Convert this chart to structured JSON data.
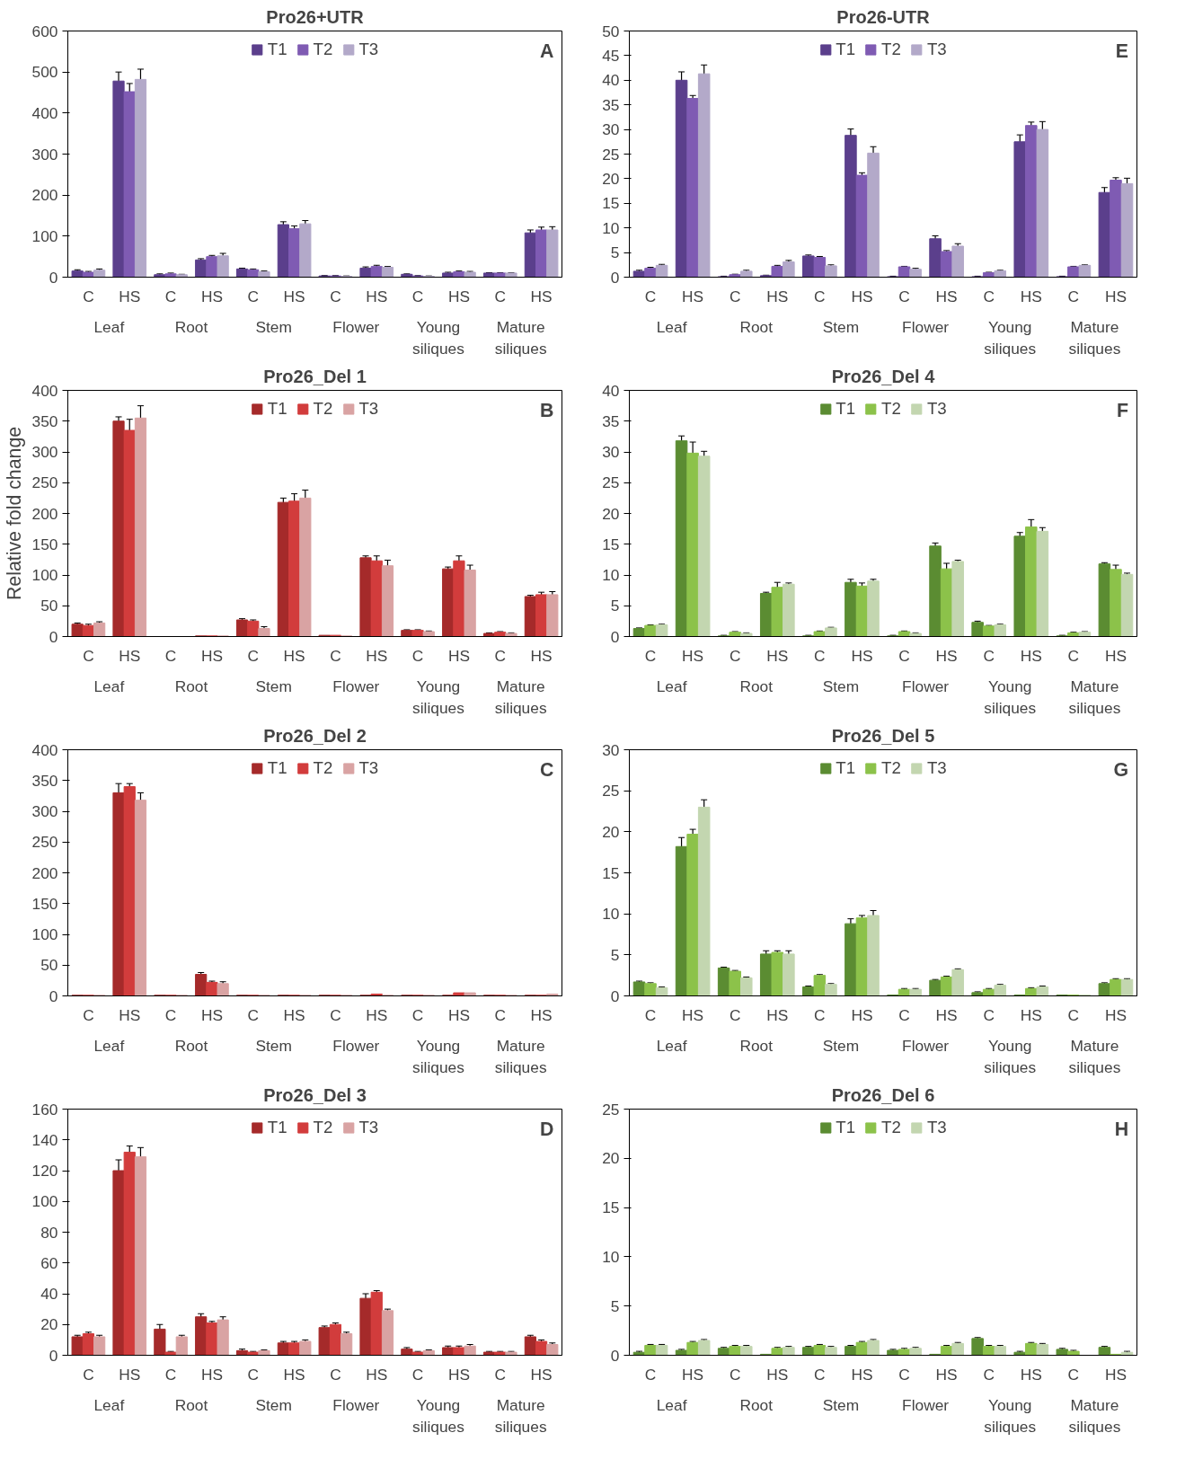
{
  "chart_data": [
    {
      "type": "bar",
      "title": "Pro26+UTR",
      "categories": [
        "C",
        "HS",
        "C",
        "HS",
        "C",
        "HS",
        "C",
        "HS",
        "C",
        "HS",
        "C",
        "HS"
      ],
      "annotations": [
        "A",
        "Leaf",
        "Root",
        "Stem",
        "Flower",
        "Young\nsiliques",
        "Mature\nsiliques"
      ],
      "ylim": [
        0,
        600
      ],
      "yticks": [
        0,
        100,
        200,
        300,
        400,
        500,
        600
      ],
      "legend": "top",
      "grid": false,
      "series": [
        {
          "name": "T1",
          "color": "#5b3f8c",
          "values": [
            15,
            478,
            6,
            42,
            20,
            128,
            3,
            22,
            7,
            10,
            10,
            108
          ],
          "errors": [
            3,
            22,
            2,
            3,
            2,
            7,
            1,
            3,
            1,
            2,
            1,
            7
          ]
        },
        {
          "name": "T2",
          "color": "#7f5bb3",
          "values": [
            12,
            452,
            8,
            50,
            18,
            118,
            3,
            26,
            3,
            13,
            10,
            115
          ],
          "errors": [
            2,
            20,
            2,
            3,
            2,
            7,
            1,
            3,
            1,
            2,
            1,
            7
          ]
        },
        {
          "name": "T3",
          "color": "#b3a9c9",
          "values": [
            17,
            482,
            6,
            52,
            13,
            130,
            2,
            24,
            2,
            12,
            10,
            115
          ],
          "errors": [
            3,
            25,
            1,
            6,
            2,
            8,
            1,
            2,
            1,
            2,
            1,
            8
          ]
        }
      ]
    },
    {
      "type": "bar",
      "title": "Pro26-UTR",
      "categories": [
        "C",
        "HS",
        "C",
        "HS",
        "C",
        "HS",
        "C",
        "HS",
        "C",
        "HS",
        "C",
        "HS"
      ],
      "annotations": [
        "E",
        "Leaf",
        "Root",
        "Stem",
        "Flower",
        "Young\nsiliques",
        "Mature\nsiliques"
      ],
      "ylim": [
        0,
        50
      ],
      "yticks": [
        0,
        5,
        10,
        15,
        20,
        25,
        30,
        35,
        40,
        45,
        50
      ],
      "legend": "top",
      "grid": false,
      "series": [
        {
          "name": "T1",
          "color": "#5b3f8c",
          "values": [
            1.2,
            40,
            0.1,
            0.3,
            4.3,
            28.8,
            0.1,
            7.8,
            0.1,
            27.5,
            0.1,
            17.2
          ],
          "errors": [
            0.2,
            1.7,
            0.1,
            0.1,
            0.2,
            1.3,
            0.1,
            0.6,
            0.1,
            1.4,
            0.1,
            1.0
          ]
        },
        {
          "name": "T2",
          "color": "#7f5bb3",
          "values": [
            1.8,
            36.3,
            0.5,
            2.2,
            4.0,
            20.7,
            2.1,
            5.2,
            0.9,
            30.8,
            2.1,
            19.7
          ],
          "errors": [
            0.2,
            0.6,
            0.1,
            0.2,
            0.2,
            0.5,
            0.1,
            0.2,
            0.1,
            0.7,
            0.1,
            0.5
          ]
        },
        {
          "name": "T3",
          "color": "#b3a9c9",
          "values": [
            2.4,
            41.3,
            1.2,
            3.1,
            2.3,
            25.2,
            1.6,
            6.3,
            1.3,
            30.0,
            2.4,
            19.0
          ],
          "errors": [
            0.2,
            1.8,
            0.2,
            0.3,
            0.2,
            1.3,
            0.2,
            0.5,
            0.1,
            1.6,
            0.1,
            1.1
          ]
        }
      ]
    },
    {
      "type": "bar",
      "title": "Pro26_Del 1",
      "ylabel": "Relative fold change",
      "categories": [
        "C",
        "HS",
        "C",
        "HS",
        "C",
        "HS",
        "C",
        "HS",
        "C",
        "HS",
        "C",
        "HS"
      ],
      "annotations": [
        "B",
        "Leaf",
        "Root",
        "Stem",
        "Flower",
        "Young\nsiliques",
        "Mature\nsiliques"
      ],
      "ylim": [
        0,
        400
      ],
      "yticks": [
        0,
        50,
        100,
        150,
        200,
        250,
        300,
        350,
        400
      ],
      "legend": "top",
      "grid": false,
      "series": [
        {
          "name": "T1",
          "color": "#a52a2a",
          "values": [
            20,
            350,
            null,
            1,
            27,
            218,
            2,
            128,
            10,
            110,
            5,
            65
          ],
          "errors": [
            2,
            7,
            null,
            null,
            2,
            7,
            null,
            3,
            1,
            3,
            1,
            2
          ]
        },
        {
          "name": "T2",
          "color": "#d23c3c",
          "values": [
            18,
            335,
            null,
            1,
            25,
            220,
            2,
            123,
            10,
            123,
            7,
            68
          ],
          "errors": [
            2,
            18,
            null,
            null,
            2,
            12,
            null,
            8,
            1,
            8,
            1,
            4
          ]
        },
        {
          "name": "T3",
          "color": "#d9a3a3",
          "values": [
            22,
            355,
            null,
            1,
            13,
            225,
            1,
            115,
            8,
            108,
            5,
            68
          ],
          "errors": [
            2,
            20,
            null,
            null,
            3,
            13,
            null,
            9,
            1,
            8,
            1,
            5
          ]
        }
      ]
    },
    {
      "type": "bar",
      "title": "Pro26_Del 4",
      "categories": [
        "C",
        "HS",
        "C",
        "HS",
        "C",
        "HS",
        "C",
        "HS",
        "C",
        "HS",
        "C",
        "HS"
      ],
      "annotations": [
        "F",
        "Leaf",
        "Root",
        "Stem",
        "Flower",
        "Young\nsiliques",
        "Mature\nsiliques"
      ],
      "ylim": [
        0,
        40
      ],
      "yticks": [
        0,
        5,
        10,
        15,
        20,
        25,
        30,
        35,
        40
      ],
      "legend": "top",
      "grid": false,
      "series": [
        {
          "name": "T1",
          "color": "#5b8c32",
          "values": [
            1.3,
            31.8,
            0.1,
            7.0,
            0.1,
            8.8,
            0.1,
            14.7,
            2.3,
            16.3,
            0.1,
            11.8
          ],
          "errors": [
            0.1,
            0.8,
            0.1,
            0.2,
            0.1,
            0.5,
            0.1,
            0.5,
            0.2,
            0.6,
            0.1,
            0.2
          ]
        },
        {
          "name": "T2",
          "color": "#8cc24a",
          "values": [
            1.8,
            29.8,
            0.7,
            8.0,
            0.8,
            8.2,
            0.8,
            11.0,
            1.7,
            17.8,
            0.6,
            10.9
          ],
          "errors": [
            0.1,
            1.8,
            0.1,
            0.8,
            0.1,
            0.5,
            0.1,
            0.9,
            0.1,
            1.2,
            0.1,
            0.7
          ]
        },
        {
          "name": "T3",
          "color": "#c3d6b0",
          "values": [
            1.9,
            29.3,
            0.5,
            8.5,
            1.4,
            9.0,
            0.5,
            12.2,
            1.9,
            17.1,
            0.7,
            10.1
          ],
          "errors": [
            0.1,
            0.8,
            0.1,
            0.2,
            0.1,
            0.3,
            0.1,
            0.2,
            0.1,
            0.6,
            0.1,
            0.2
          ]
        }
      ]
    },
    {
      "type": "bar",
      "title": "Pro26_Del 2",
      "categories": [
        "C",
        "HS",
        "C",
        "HS",
        "C",
        "HS",
        "C",
        "HS",
        "C",
        "HS",
        "C",
        "HS"
      ],
      "annotations": [
        "C",
        "Leaf",
        "Root",
        "Stem",
        "Flower",
        "Young\nsiliques",
        "Mature\nsiliques"
      ],
      "ylim": [
        0,
        400
      ],
      "yticks": [
        0,
        50,
        100,
        150,
        200,
        250,
        300,
        350,
        400
      ],
      "legend": "top",
      "grid": false,
      "series": [
        {
          "name": "T1",
          "color": "#a52a2a",
          "values": [
            1,
            330,
            1,
            35,
            1,
            1,
            1,
            1,
            1,
            1,
            1,
            1
          ],
          "errors": [
            null,
            15,
            null,
            3,
            null,
            null,
            null,
            null,
            null,
            null,
            null,
            null
          ]
        },
        {
          "name": "T2",
          "color": "#d23c3c",
          "values": [
            1,
            340,
            1,
            22,
            1,
            1,
            1,
            3,
            1,
            5,
            1,
            1
          ],
          "errors": [
            null,
            5,
            null,
            2,
            null,
            null,
            null,
            null,
            null,
            null,
            null,
            null
          ]
        },
        {
          "name": "T3",
          "color": "#d9a3a3",
          "values": [
            1,
            318,
            1,
            20,
            1,
            1,
            1,
            1,
            1,
            5,
            1,
            3
          ],
          "errors": [
            null,
            12,
            null,
            3,
            null,
            null,
            null,
            null,
            null,
            null,
            null,
            null
          ]
        }
      ]
    },
    {
      "type": "bar",
      "title": "Pro26_Del 5",
      "categories": [
        "C",
        "HS",
        "C",
        "HS",
        "C",
        "HS",
        "C",
        "HS",
        "C",
        "HS",
        "C",
        "HS"
      ],
      "annotations": [
        "G",
        "Leaf",
        "Root",
        "Stem",
        "Flower",
        "Young\nsiliques",
        "Mature\nsiliques"
      ],
      "ylim": [
        0,
        30
      ],
      "yticks": [
        0,
        5,
        10,
        15,
        20,
        25,
        30
      ],
      "legend": "top",
      "grid": false,
      "series": [
        {
          "name": "T1",
          "color": "#5b8c32",
          "values": [
            1.7,
            18.2,
            3.4,
            5.1,
            1.1,
            8.8,
            0.1,
            1.9,
            0.4,
            0.1,
            0.1,
            1.5
          ],
          "errors": [
            0.1,
            1.1,
            0.1,
            0.4,
            0.1,
            0.6,
            null,
            0.1,
            0.1,
            null,
            null,
            0.1
          ]
        },
        {
          "name": "T2",
          "color": "#8cc24a",
          "values": [
            1.5,
            19.7,
            3.0,
            5.3,
            2.5,
            9.5,
            0.8,
            2.3,
            0.8,
            0.9,
            0.1,
            2.0
          ],
          "errors": [
            0.1,
            0.6,
            0.1,
            0.2,
            0.1,
            0.3,
            0.1,
            0.1,
            0.1,
            0.1,
            null,
            0.1
          ]
        },
        {
          "name": "T3",
          "color": "#c3d6b0",
          "values": [
            1.0,
            23.0,
            2.2,
            5.1,
            1.4,
            9.8,
            0.8,
            3.2,
            1.3,
            1.1,
            0.1,
            2.0
          ],
          "errors": [
            0.1,
            0.9,
            0.1,
            0.4,
            0.1,
            0.6,
            0.1,
            0.1,
            0.1,
            0.1,
            null,
            0.1
          ]
        }
      ]
    },
    {
      "type": "bar",
      "title": "Pro26_Del 3",
      "categories": [
        "C",
        "HS",
        "C",
        "HS",
        "C",
        "HS",
        "C",
        "HS",
        "C",
        "HS",
        "C",
        "HS"
      ],
      "annotations": [
        "D",
        "Leaf",
        "Root",
        "Stem",
        "Flower",
        "Young\nsiliques",
        "Mature\nsiliques"
      ],
      "ylim": [
        0,
        160
      ],
      "yticks": [
        0,
        20,
        40,
        60,
        80,
        100,
        120,
        140,
        160
      ],
      "legend": "top",
      "grid": false,
      "series": [
        {
          "name": "T1",
          "color": "#a52a2a",
          "values": [
            12,
            120,
            17,
            25,
            3,
            8,
            18,
            37,
            4,
            5,
            2,
            12
          ],
          "errors": [
            1,
            7,
            3,
            2,
            1,
            1,
            1,
            3,
            1,
            1,
            0.5,
            1
          ]
        },
        {
          "name": "T2",
          "color": "#d23c3c",
          "values": [
            14,
            132,
            2,
            21,
            2,
            8,
            20,
            41,
            2,
            5,
            2,
            9
          ],
          "errors": [
            1,
            4,
            0.5,
            1,
            0.5,
            1,
            1,
            1,
            0.5,
            1,
            0.5,
            1
          ]
        },
        {
          "name": "T3",
          "color": "#d9a3a3",
          "values": [
            12,
            129,
            12,
            23,
            3,
            9,
            14,
            29,
            3,
            6,
            2,
            7
          ],
          "errors": [
            1,
            6,
            1,
            2,
            0.5,
            1,
            1,
            1,
            0.5,
            1,
            0.5,
            1
          ]
        }
      ]
    },
    {
      "type": "bar",
      "title": "Pro26_Del 6",
      "categories": [
        "C",
        "HS",
        "C",
        "HS",
        "C",
        "HS",
        "C",
        "HS",
        "C",
        "HS",
        "C",
        "HS"
      ],
      "annotations": [
        "H",
        "Leaf",
        "Root",
        "Stem",
        "Flower",
        "Young\nsiliques",
        "Mature\nsiliques"
      ],
      "ylim": [
        0,
        25
      ],
      "yticks": [
        0,
        5,
        10,
        15,
        20,
        25
      ],
      "legend": "top",
      "grid": false,
      "series": [
        {
          "name": "T1",
          "color": "#5b8c32",
          "values": [
            0.3,
            0.5,
            0.7,
            0.1,
            0.8,
            0.9,
            0.5,
            0.1,
            1.7,
            0.3,
            0.6,
            0.8
          ],
          "errors": [
            0.1,
            0.1,
            0.1,
            null,
            0.1,
            0.1,
            0.1,
            null,
            0.1,
            0.1,
            0.1,
            0.1
          ]
        },
        {
          "name": "T2",
          "color": "#8cc24a",
          "values": [
            1.0,
            1.3,
            0.9,
            0.7,
            1.0,
            1.3,
            0.6,
            0.9,
            0.9,
            1.2,
            0.4,
            0.1
          ],
          "errors": [
            0.1,
            0.1,
            0.1,
            0.1,
            0.1,
            0.1,
            0.1,
            0.1,
            0.1,
            0.1,
            0.1,
            null
          ]
        },
        {
          "name": "T3",
          "color": "#c3d6b0",
          "values": [
            1.0,
            1.5,
            0.9,
            0.8,
            0.8,
            1.5,
            0.7,
            1.2,
            0.9,
            1.1,
            null,
            0.3
          ],
          "errors": [
            0.1,
            0.1,
            0.1,
            0.1,
            0.1,
            0.1,
            0.1,
            0.1,
            0.1,
            0.1,
            null,
            0.1
          ]
        }
      ]
    }
  ]
}
